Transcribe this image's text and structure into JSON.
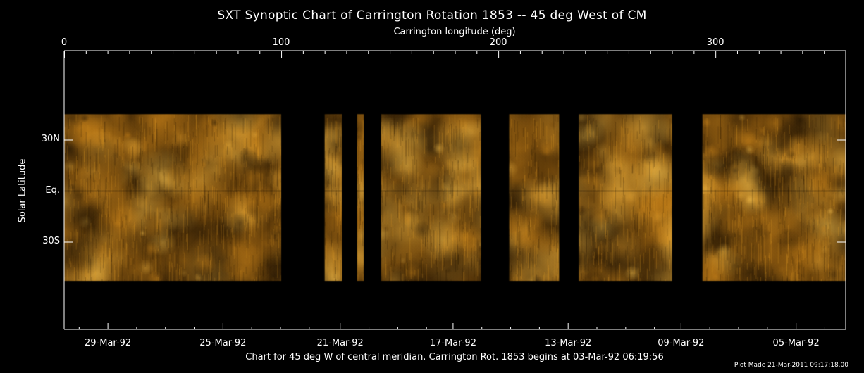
{
  "chart_data": {
    "type": "heatmap",
    "title": "SXT Synoptic Chart of Carrington Rotation 1853 -- 45 deg West of CM",
    "xlabel": "Carrington longitude (deg)",
    "ylabel": "Solar Latitude",
    "xlim": [
      0,
      360
    ],
    "ylim": [
      -90,
      90
    ],
    "x_ticks": [
      {
        "value": 0,
        "label": "0"
      },
      {
        "value": 100,
        "label": "100"
      },
      {
        "value": 200,
        "label": "200"
      },
      {
        "value": 300,
        "label": "300"
      }
    ],
    "y_ticks": [
      {
        "value": 30,
        "label": "30N"
      },
      {
        "value": 0,
        "label": "Eq."
      },
      {
        "value": -30,
        "label": "30S"
      }
    ],
    "date_ticks": [
      {
        "longitude": 20,
        "label": "29-Mar-92"
      },
      {
        "longitude": 73,
        "label": "25-Mar-92"
      },
      {
        "longitude": 127,
        "label": "21-Mar-92"
      },
      {
        "longitude": 179,
        "label": "17-Mar-92"
      },
      {
        "longitude": 232,
        "label": "13-Mar-92"
      },
      {
        "longitude": 284,
        "label": "09-Mar-92"
      },
      {
        "longitude": 337,
        "label": "05-Mar-92"
      }
    ],
    "image_latitude_range": [
      -53,
      45
    ],
    "data_gaps_longitude": [
      [
        100,
        120
      ],
      [
        128,
        135
      ],
      [
        138,
        146
      ],
      [
        192,
        205
      ],
      [
        228,
        237
      ],
      [
        280,
        294
      ]
    ],
    "colormap": [
      "#000000",
      "#3a2406",
      "#8a5a10",
      "#d69a1e",
      "#ffe070"
    ],
    "equator_line_color": "#000000",
    "frame_color": "#ffffff"
  },
  "footer": "Chart for 45 deg W of central meridian.  Carrington Rot. 1853 begins at 03-Mar-92 06:19:56",
  "plot_made": "Plot Made 21-Mar-2011 09:17:18.00"
}
